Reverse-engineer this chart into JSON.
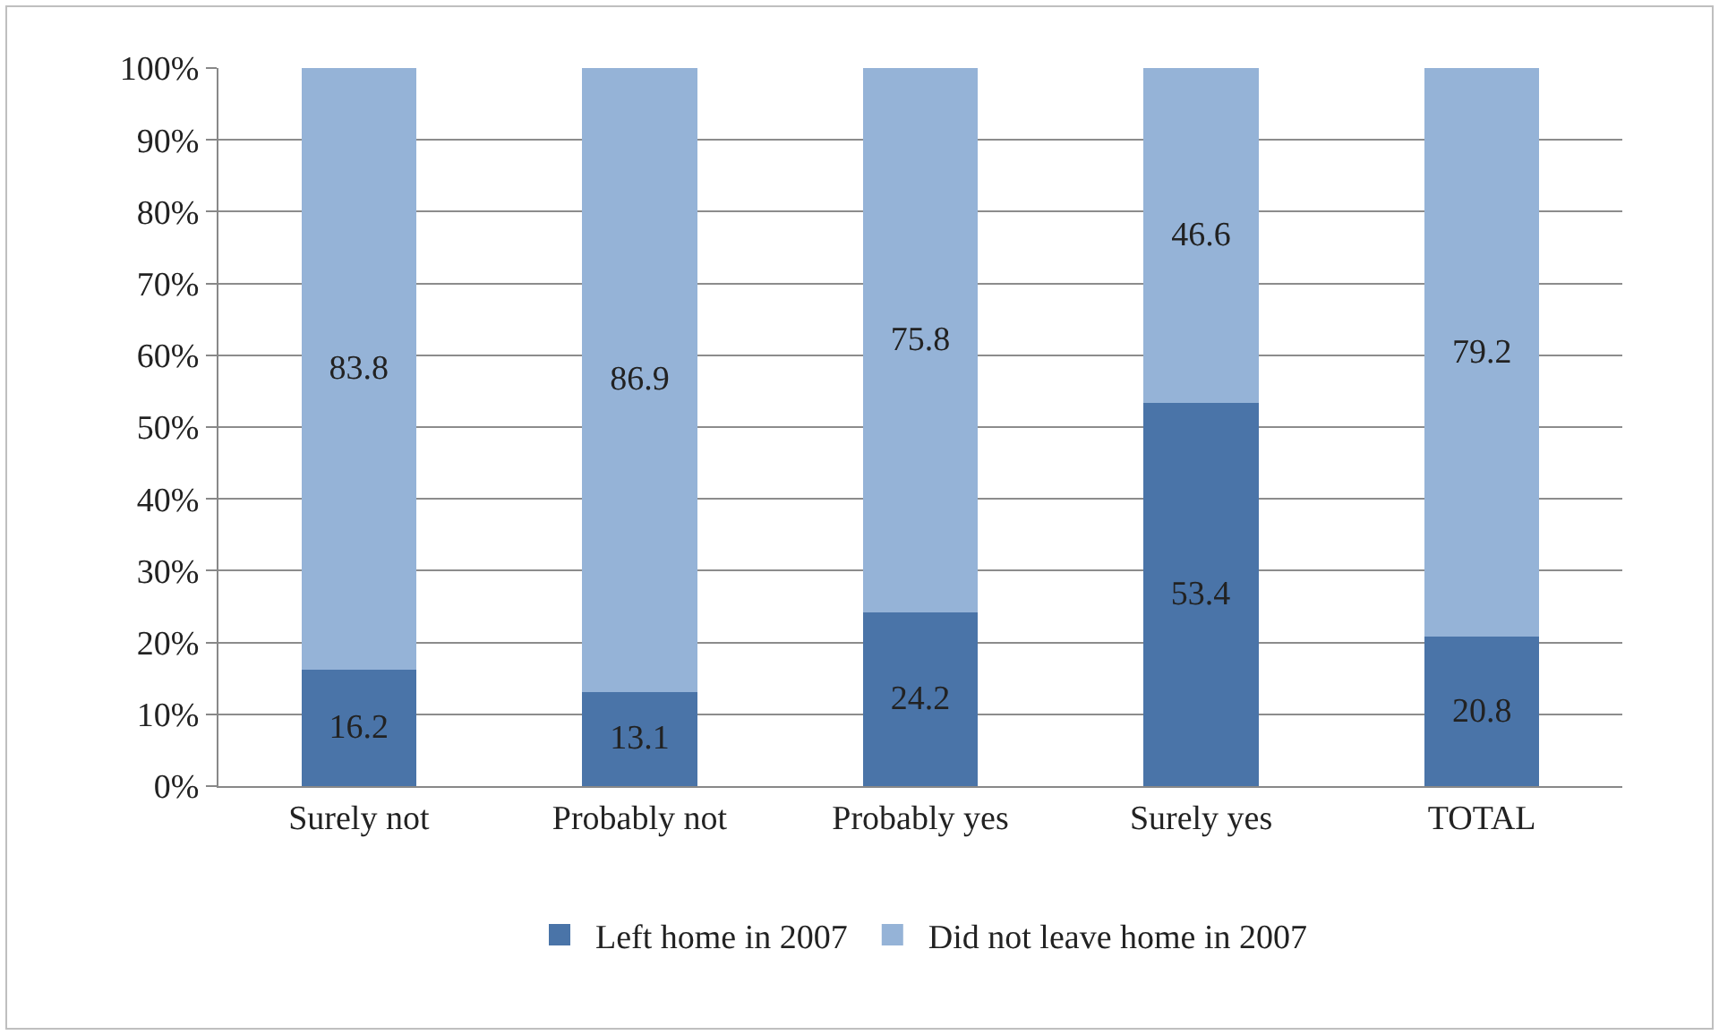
{
  "chart_data": {
    "type": "bar",
    "stacked": true,
    "categories": [
      "Surely not",
      "Probably not",
      "Probably yes",
      "Surely yes",
      "TOTAL"
    ],
    "series": [
      {
        "name": "Left home in 2007",
        "color": "#4a74a8",
        "values": [
          16.2,
          13.1,
          24.2,
          53.4,
          20.8
        ]
      },
      {
        "name": "Did not leave home in 2007",
        "color": "#95b3d7",
        "values": [
          83.8,
          86.9,
          75.8,
          46.6,
          79.2
        ]
      }
    ],
    "ylim": [
      0,
      100
    ],
    "yticks": [
      {
        "value": 0,
        "label": "0%"
      },
      {
        "value": 10,
        "label": "10%"
      },
      {
        "value": 20,
        "label": "20%"
      },
      {
        "value": 30,
        "label": "30%"
      },
      {
        "value": 40,
        "label": "40%"
      },
      {
        "value": 50,
        "label": "50%"
      },
      {
        "value": 60,
        "label": "60%"
      },
      {
        "value": 70,
        "label": "70%"
      },
      {
        "value": 80,
        "label": "80%"
      },
      {
        "value": 90,
        "label": "90%"
      },
      {
        "value": 100,
        "label": "100%"
      }
    ],
    "grid": "y",
    "legend": "bottom",
    "data_labels": true
  }
}
